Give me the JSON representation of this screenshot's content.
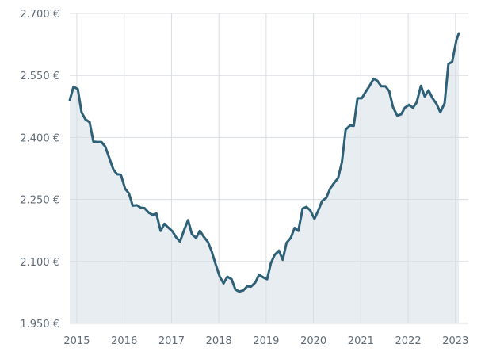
{
  "chart_data": {
    "type": "area",
    "title": "",
    "xlabel": "",
    "ylabel": "",
    "x_ticks": [
      "2015",
      "2016",
      "2017",
      "2018",
      "2019",
      "2020",
      "2021",
      "2022",
      "2023"
    ],
    "y_ticks": [
      "1.950 €",
      "2.100 €",
      "2.250 €",
      "2.400 €",
      "2.550 €",
      "2.700 €"
    ],
    "y_tick_values": [
      1950,
      2100,
      2250,
      2400,
      2550,
      2700
    ],
    "ylim": [
      1950,
      2700
    ],
    "xlim": [
      2014.85,
      2023.07
    ],
    "grid": true,
    "colors": {
      "line": "#2e6178",
      "area": "#e8edf2",
      "grid": "#d9dde1",
      "text": "#5f6b76"
    },
    "series": [
      {
        "x": [
          2014.85,
          2014.93,
          2015.02,
          2015.1,
          2015.18,
          2015.27,
          2015.35,
          2015.43,
          2015.52,
          2015.6,
          2015.68,
          2015.77,
          2015.85,
          2015.93,
          2016.02,
          2016.1,
          2016.18,
          2016.27,
          2016.35,
          2016.43,
          2016.52,
          2016.6,
          2016.68,
          2016.77,
          2016.85,
          2016.93,
          2017.02,
          2017.1,
          2017.18,
          2017.27,
          2017.35,
          2017.43,
          2017.52,
          2017.6,
          2017.68,
          2017.77,
          2017.85,
          2017.93,
          2018.02,
          2018.1,
          2018.18,
          2018.27,
          2018.35,
          2018.43,
          2018.52,
          2018.6,
          2018.68,
          2018.77,
          2018.85,
          2018.93,
          2019.02,
          2019.1,
          2019.18,
          2019.27,
          2019.35,
          2019.43,
          2019.52,
          2019.6,
          2019.68,
          2019.77,
          2019.85,
          2019.93,
          2020.02,
          2020.1,
          2020.18,
          2020.27,
          2020.35,
          2020.43,
          2020.52,
          2020.6,
          2020.68,
          2020.77,
          2020.85,
          2020.93,
          2021.02,
          2021.1,
          2021.18,
          2021.27,
          2021.35,
          2021.43,
          2021.52,
          2021.6,
          2021.68,
          2021.77,
          2021.85,
          2021.93,
          2022.02,
          2022.1,
          2022.18,
          2022.27,
          2022.35,
          2022.43,
          2022.52,
          2022.6,
          2022.68,
          2022.77,
          2022.85,
          2022.93,
          2023.02,
          2023.07
        ],
        "values": [
          2490,
          2523,
          2517,
          2461,
          2444,
          2437,
          2390,
          2389,
          2389,
          2378,
          2352,
          2323,
          2311,
          2310,
          2276,
          2265,
          2235,
          2236,
          2230,
          2229,
          2218,
          2213,
          2216,
          2174,
          2191,
          2182,
          2173,
          2158,
          2148,
          2177,
          2200,
          2166,
          2157,
          2174,
          2160,
          2147,
          2124,
          2094,
          2063,
          2047,
          2063,
          2057,
          2032,
          2027,
          2030,
          2040,
          2039,
          2049,
          2068,
          2062,
          2057,
          2096,
          2116,
          2126,
          2104,
          2145,
          2157,
          2181,
          2174,
          2228,
          2232,
          2224,
          2203,
          2223,
          2246,
          2254,
          2276,
          2289,
          2302,
          2340,
          2419,
          2429,
          2428,
          2495,
          2495,
          2510,
          2524,
          2542,
          2537,
          2524,
          2524,
          2512,
          2473,
          2453,
          2456,
          2472,
          2479,
          2472,
          2485,
          2525,
          2499,
          2514,
          2494,
          2481,
          2461,
          2483,
          2578,
          2583,
          2636,
          2652
        ]
      }
    ]
  }
}
